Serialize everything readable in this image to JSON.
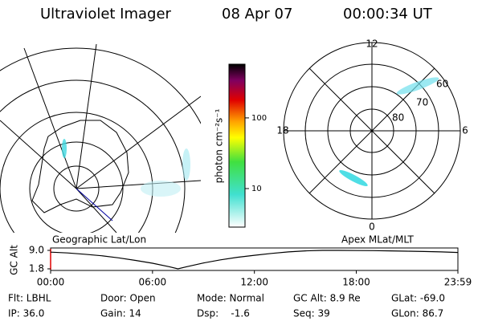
{
  "header": {
    "title": "Ultraviolet Imager",
    "date": "08 Apr 07",
    "time": "00:00:34 UT"
  },
  "chart_data": [
    {
      "type": "map",
      "title": "Geographic Lat/Lon"
    },
    {
      "type": "colorbar",
      "label": "photon cm⁻²s⁻¹",
      "log_scale": true,
      "ylim": [
        2.85,
        575
      ],
      "yticks": [
        10,
        100
      ]
    },
    {
      "type": "polar",
      "title": "Apex MLat/MLT",
      "hour_labels": [
        "12",
        "18",
        "6",
        "0"
      ],
      "lat_labels": [
        "60",
        "70",
        "80"
      ]
    },
    {
      "type": "line",
      "ylabel": "GC Alt",
      "color": "#000000",
      "x": [
        0,
        1,
        2,
        3,
        4,
        5,
        6,
        7,
        7.5,
        8,
        9,
        10,
        11,
        12,
        13,
        14,
        15,
        16,
        17,
        18,
        19,
        20,
        21,
        22,
        23,
        23.983
      ],
      "values": [
        8.3,
        8.0,
        7.5,
        6.9,
        6.1,
        5.1,
        4.0,
        2.6,
        1.8,
        2.6,
        4.1,
        5.3,
        6.3,
        7.1,
        7.8,
        8.4,
        8.8,
        9.0,
        9.0,
        8.95,
        8.9,
        8.8,
        8.7,
        8.55,
        8.4,
        8.2
      ],
      "xlim": [
        0,
        23.983
      ],
      "xticks": [
        {
          "value": 0,
          "label": "00:00"
        },
        {
          "value": 6,
          "label": "06:00"
        },
        {
          "value": 12,
          "label": "12:00"
        },
        {
          "value": 18,
          "label": "18:00"
        },
        {
          "value": 23.983,
          "label": "23:59"
        }
      ],
      "ylim": [
        1.8,
        9.0
      ],
      "yticks": [
        1.8,
        {
          "value": 9.0,
          "label": "9.0"
        }
      ]
    }
  ],
  "footer": {
    "rows": [
      [
        "Flt: LBHL",
        "Door: Open",
        "Mode: Normal",
        "GC Alt: 8.9 Re",
        "GLat: -69.0"
      ],
      [
        "IP: 36.0",
        "Gain: 14",
        "Dsp:    -1.6",
        "Seq: 39",
        "GLon: 86.7"
      ]
    ]
  }
}
